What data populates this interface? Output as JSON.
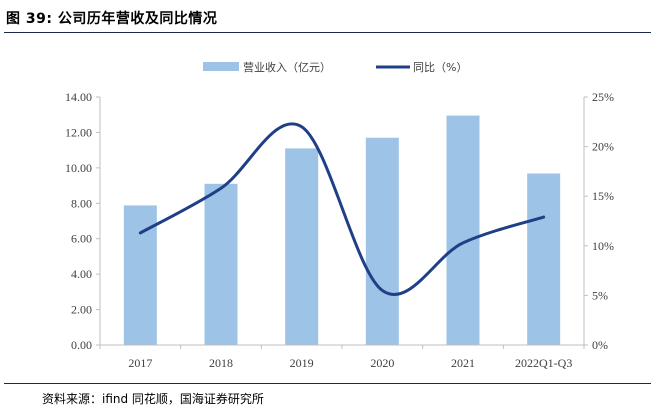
{
  "figure_title": "图 39:  公司历年营收及同比情况",
  "source_note": "资料来源：ifind 同花顺，国海证券研究所",
  "colors": {
    "bar": "#9dc3e6",
    "line": "#1f3f87",
    "axis": "#bfbfbf",
    "rule": "#1f2a4a"
  },
  "chart_data": {
    "type": "bar+line",
    "title": "",
    "categories": [
      "2017",
      "2018",
      "2019",
      "2020",
      "2021",
      "2022Q1-Q3"
    ],
    "series": [
      {
        "name": "营业收入（亿元）",
        "type": "bar",
        "axis": "left",
        "values": [
          7.88,
          9.1,
          11.1,
          11.7,
          12.95,
          9.68
        ]
      },
      {
        "name": "同比（%）",
        "type": "line",
        "axis": "right",
        "smooth": true,
        "values": [
          11.3,
          15.8,
          22.0,
          5.5,
          10.3,
          12.9
        ]
      }
    ],
    "left_axis": {
      "ylim": [
        0,
        14
      ],
      "ticks": [
        "0.00",
        "2.00",
        "4.00",
        "6.00",
        "8.00",
        "10.00",
        "12.00",
        "14.00"
      ]
    },
    "right_axis": {
      "ylim": [
        0,
        25
      ],
      "ticks": [
        "0%",
        "5%",
        "10%",
        "15%",
        "20%",
        "25%"
      ]
    },
    "legend": {
      "position": "top-center"
    },
    "grid": false
  }
}
